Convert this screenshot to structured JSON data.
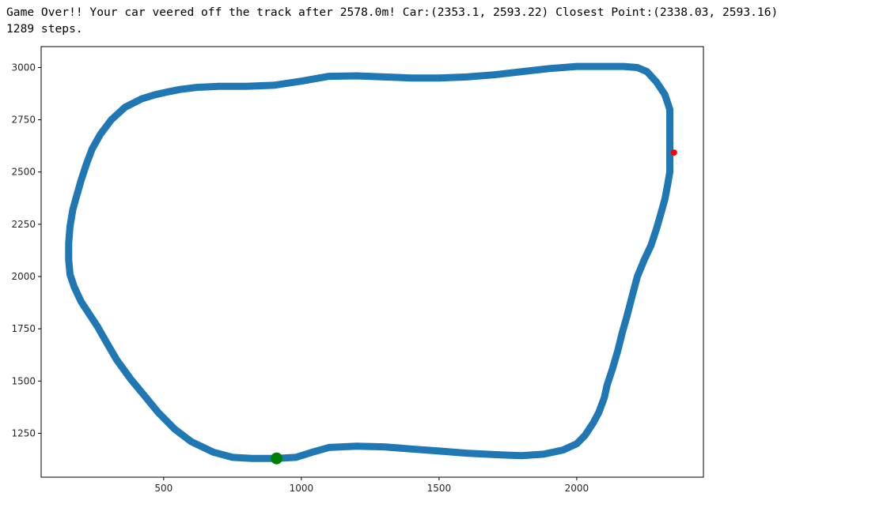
{
  "output": {
    "line1": "Game Over!! Your car veered off the track after 2578.0m! Car:(2353.1, 2593.22) Closest Point:(2338.03, 2593.16)",
    "line2": "1289 steps."
  },
  "chart_data": {
    "type": "scatter",
    "title": "",
    "xlabel": "",
    "ylabel": "",
    "xlim": [
      55,
      2460
    ],
    "ylim": [
      1040,
      3100
    ],
    "grid": false,
    "legend": "none",
    "xticks": [
      500,
      1000,
      1500,
      2000
    ],
    "yticks": [
      1250,
      1500,
      1750,
      2000,
      2250,
      2500,
      2750,
      3000
    ],
    "series": [
      {
        "role": "track",
        "color": "#1f77b4",
        "closed": true,
        "x": [
          910,
          980,
          1040,
          1100,
          1200,
          1300,
          1400,
          1500,
          1600,
          1700,
          1800,
          1880,
          1950,
          2000,
          2030,
          2060,
          2080,
          2100,
          2110,
          2130,
          2150,
          2165,
          2180,
          2200,
          2220,
          2245,
          2270,
          2290,
          2305,
          2320,
          2330,
          2338,
          2338,
          2320,
          2290,
          2255,
          2220,
          2170,
          2100,
          2000,
          1900,
          1800,
          1700,
          1600,
          1500,
          1400,
          1300,
          1200,
          1100,
          1000,
          900,
          800,
          700,
          620,
          560,
          520,
          470,
          420,
          360,
          310,
          270,
          240,
          220,
          200,
          185,
          170,
          160,
          155,
          155,
          160,
          175,
          200,
          230,
          260,
          290,
          330,
          380,
          430,
          480,
          540,
          600,
          680,
          750,
          820
        ],
        "y": [
          1130,
          1135,
          1160,
          1182,
          1188,
          1185,
          1175,
          1165,
          1155,
          1148,
          1143,
          1150,
          1170,
          1200,
          1240,
          1300,
          1350,
          1420,
          1480,
          1560,
          1650,
          1730,
          1800,
          1900,
          2000,
          2080,
          2150,
          2230,
          2300,
          2370,
          2440,
          2500,
          2800,
          2870,
          2930,
          2980,
          3000,
          3005,
          3005,
          3005,
          2995,
          2980,
          2965,
          2955,
          2950,
          2950,
          2955,
          2960,
          2958,
          2935,
          2915,
          2910,
          2910,
          2905,
          2895,
          2885,
          2870,
          2850,
          2810,
          2750,
          2680,
          2610,
          2540,
          2460,
          2390,
          2320,
          2240,
          2160,
          2080,
          2010,
          1950,
          1880,
          1820,
          1760,
          1690,
          1600,
          1510,
          1430,
          1350,
          1270,
          1210,
          1160,
          1135,
          1130
        ]
      },
      {
        "role": "start-point",
        "color": "#008000",
        "x": [
          910
        ],
        "y": [
          1130
        ]
      },
      {
        "role": "car-position",
        "color": "#ff0000",
        "x": [
          2353.1
        ],
        "y": [
          2593.22
        ]
      }
    ]
  }
}
